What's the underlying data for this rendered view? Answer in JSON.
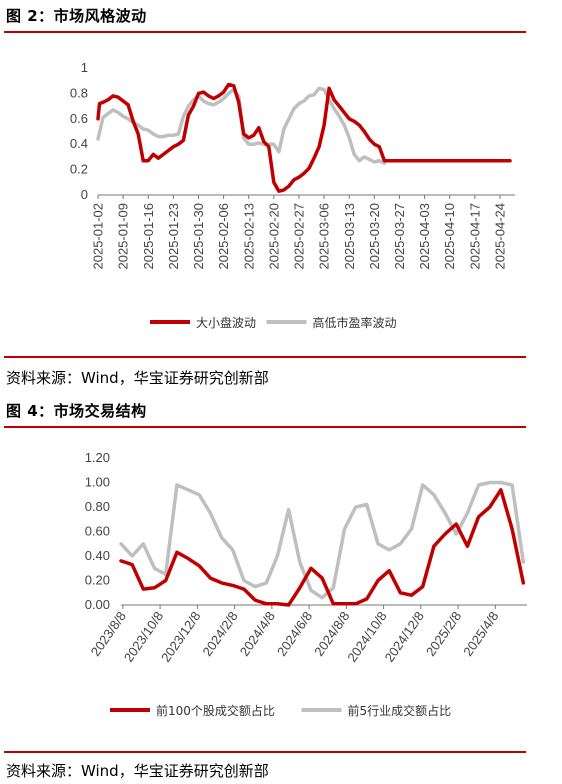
{
  "figures": [
    {
      "title": "图 2：市场风格波动",
      "source": "资料来源：Wind，华宝证券研究创新部",
      "chart_data": {
        "type": "line",
        "title": "",
        "xlabel": "",
        "ylabel": "",
        "ylim": [
          0,
          1
        ],
        "yticks": [
          "0",
          "0.2",
          "0.4",
          "0.6",
          "0.8",
          "1"
        ],
        "x": [
          "2025-01-02",
          "2025-01-09",
          "2025-01-16",
          "2025-01-23",
          "2025-01-30",
          "2025-02-06",
          "2025-02-13",
          "2025-02-20",
          "2025-02-27",
          "2025-03-06",
          "2025-03-13",
          "2025-03-20",
          "2025-03-27",
          "2025-04-03",
          "2025-04-10",
          "2025-04-17",
          "2025-04-24"
        ],
        "legend_position": "bottom",
        "grid": false,
        "series": [
          {
            "name": "大小盘波动",
            "color": "#c00000",
            "x": [
              0,
              0.3,
              1,
              2,
              3,
              4,
              5,
              6,
              7,
              8,
              9,
              10,
              11,
              12,
              13,
              14,
              15,
              16,
              17,
              18,
              19,
              20,
              21,
              22,
              23,
              24,
              25,
              26,
              27,
              28,
              29,
              30,
              31,
              32,
              33,
              34,
              35,
              36,
              37,
              38,
              39,
              40,
              41,
              42,
              43,
              44,
              45,
              46,
              47,
              48,
              49,
              50,
              51,
              52,
              53,
              54,
              55,
              56,
              57,
              58,
              59,
              60,
              61,
              62,
              63,
              64,
              65,
              66,
              67,
              68,
              69,
              70,
              71,
              72,
              73,
              74,
              75,
              76,
              77,
              78,
              79,
              80,
              81,
              82
            ],
            "y": [
              0.6,
              0.72,
              0.73,
              0.75,
              0.78,
              0.77,
              0.74,
              0.71,
              0.58,
              0.48,
              0.27,
              0.27,
              0.32,
              0.29,
              0.32,
              0.35,
              0.38,
              0.4,
              0.43,
              0.63,
              0.7,
              0.8,
              0.81,
              0.78,
              0.76,
              0.78,
              0.81,
              0.87,
              0.86,
              0.73,
              0.48,
              0.45,
              0.47,
              0.53,
              0.42,
              0.38,
              0.1,
              0.03,
              0.04,
              0.07,
              0.12,
              0.14,
              0.17,
              0.21,
              0.29,
              0.38,
              0.55,
              0.84,
              0.75,
              0.7,
              0.65,
              0.6,
              0.58,
              0.55,
              0.5,
              0.44,
              0.4,
              0.38,
              0.27,
              0.27,
              0.27,
              0.27,
              0.27,
              0.27,
              0.27,
              0.27,
              0.27,
              0.27,
              0.27,
              0.27,
              0.27,
              0.27,
              0.27,
              0.27,
              0.27,
              0.27,
              0.27,
              0.27,
              0.27,
              0.27,
              0.27,
              0.27,
              0.27,
              0.27
            ]
          },
          {
            "name": "高低市盈率波动",
            "color": "#bfbfbf",
            "x": [
              0,
              1,
              2,
              3,
              4,
              5,
              6,
              7,
              8,
              9,
              10,
              11,
              12,
              13,
              14,
              15,
              16,
              17,
              18,
              19,
              20,
              21,
              22,
              23,
              24,
              25,
              26,
              27,
              28,
              29,
              30,
              31,
              32,
              33,
              34,
              35,
              36,
              37,
              38,
              39,
              40,
              41,
              42,
              43,
              44,
              45,
              46,
              47,
              48,
              49,
              50,
              51,
              52,
              53,
              54,
              55,
              56,
              57
            ],
            "y": [
              0.44,
              0.61,
              0.64,
              0.67,
              0.65,
              0.62,
              0.6,
              0.57,
              0.55,
              0.52,
              0.51,
              0.48,
              0.46,
              0.46,
              0.47,
              0.47,
              0.48,
              0.62,
              0.7,
              0.75,
              0.78,
              0.74,
              0.72,
              0.71,
              0.73,
              0.76,
              0.8,
              0.83,
              0.78,
              0.45,
              0.4,
              0.4,
              0.41,
              0.4,
              0.4,
              0.4,
              0.34,
              0.52,
              0.6,
              0.68,
              0.72,
              0.74,
              0.78,
              0.79,
              0.84,
              0.83,
              0.75,
              0.68,
              0.62,
              0.55,
              0.45,
              0.32,
              0.27,
              0.3,
              0.28,
              0.26,
              0.27,
              0.25
            ]
          }
        ]
      }
    },
    {
      "title": "图 4：市场交易结构",
      "source": "资料来源：Wind，华宝证券研究创新部",
      "chart_data": {
        "type": "line",
        "title": "",
        "xlabel": "",
        "ylabel": "",
        "ylim": [
          0,
          1.2
        ],
        "yticks": [
          "0.00",
          "0.20",
          "0.40",
          "0.60",
          "0.80",
          "1.00",
          "1.20"
        ],
        "x": [
          "2023/8/8",
          "2023/10/8",
          "2023/12/8",
          "2024/2/8",
          "2024/4/8",
          "2024/6/8",
          "2024/8/8",
          "2024/10/8",
          "2024/12/8",
          "2025/2/8",
          "2025/4/8"
        ],
        "legend_position": "bottom",
        "grid": false,
        "series": [
          {
            "name": "前100个股成交额占比",
            "color": "#c00000",
            "x": [
              0,
              0.3,
              0.6,
              0.9,
              1.2,
              1.5,
              1.8,
              2.1,
              2.4,
              2.7,
              3.0,
              3.3,
              3.6,
              3.9,
              4.2,
              4.5,
              4.8,
              5.1,
              5.4,
              5.7,
              6.0,
              6.3,
              6.6,
              6.9,
              7.2,
              7.5,
              7.8,
              8.1,
              8.4,
              8.7,
              9.0,
              9.3,
              9.6,
              9.9,
              10.2,
              10.5,
              10.8
            ],
            "y": [
              0.36,
              0.33,
              0.13,
              0.14,
              0.2,
              0.43,
              0.38,
              0.32,
              0.22,
              0.18,
              0.16,
              0.13,
              0.04,
              0.01,
              0.01,
              0.0,
              0.14,
              0.3,
              0.22,
              0.01,
              0.01,
              0.01,
              0.05,
              0.2,
              0.28,
              0.1,
              0.08,
              0.15,
              0.48,
              0.58,
              0.66,
              0.48,
              0.72,
              0.8,
              0.94,
              0.62,
              0.18
            ]
          },
          {
            "name": "前5行业成交额占比",
            "color": "#bfbfbf",
            "x": [
              0,
              0.3,
              0.6,
              0.9,
              1.2,
              1.5,
              1.8,
              2.1,
              2.4,
              2.7,
              3.0,
              3.3,
              3.6,
              3.9,
              4.2,
              4.5,
              4.8,
              5.1,
              5.4,
              5.7,
              6.0,
              6.3,
              6.6,
              6.9,
              7.2,
              7.5,
              7.8,
              8.1,
              8.4,
              8.7,
              9.0,
              9.3,
              9.6,
              9.9,
              10.2,
              10.5,
              10.8
            ],
            "y": [
              0.5,
              0.4,
              0.5,
              0.3,
              0.25,
              0.98,
              0.94,
              0.9,
              0.75,
              0.55,
              0.45,
              0.2,
              0.15,
              0.18,
              0.4,
              0.78,
              0.35,
              0.12,
              0.06,
              0.14,
              0.62,
              0.8,
              0.82,
              0.5,
              0.45,
              0.5,
              0.62,
              0.98,
              0.9,
              0.75,
              0.58,
              0.75,
              0.98,
              1.0,
              1.0,
              0.98,
              0.35
            ]
          }
        ]
      }
    }
  ]
}
